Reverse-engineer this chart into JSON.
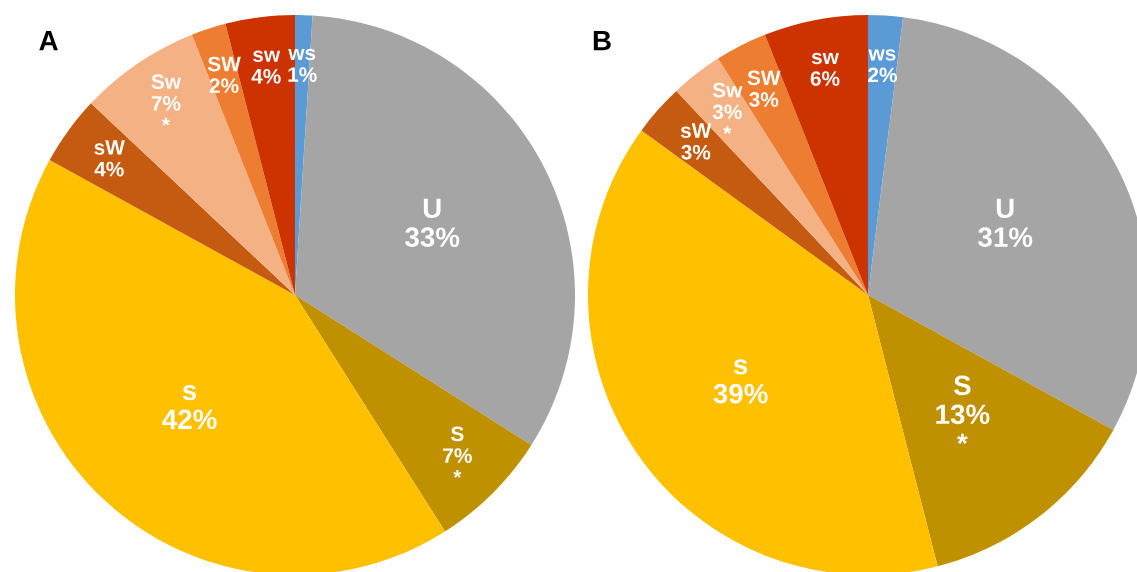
{
  "chart_data": [
    {
      "type": "pie",
      "title": "A",
      "categories": [
        "ws",
        "U",
        "S",
        "s",
        "sW",
        "Sw",
        "SW",
        "sw"
      ],
      "values": [
        1,
        33,
        7,
        42,
        4,
        7,
        2,
        4
      ],
      "value_labels": [
        "1%",
        "33%",
        "7%\n*",
        "42%",
        "4%",
        "7%\n*",
        "2%",
        "4%"
      ],
      "colors": [
        "#5b9bd5",
        "#a5a5a5",
        "#bf9000",
        "#ffc000",
        "#c55a11",
        "#f4b183",
        "#ed7d31",
        "#cc3300"
      ],
      "legend": false
    },
    {
      "type": "pie",
      "title": "B",
      "categories": [
        "ws",
        "U",
        "S",
        "s",
        "sW",
        "Sw",
        "SW",
        "sw"
      ],
      "values": [
        2,
        31,
        13,
        39,
        3,
        3,
        3,
        6
      ],
      "value_labels": [
        "2%",
        "31%",
        "13%\n*",
        "39%",
        "3%",
        "3%\n*",
        "3%",
        "6%"
      ],
      "colors": [
        "#5b9bd5",
        "#a5a5a5",
        "#bf9000",
        "#ffc000",
        "#c55a11",
        "#f4b183",
        "#ed7d31",
        "#cc3300"
      ],
      "legend": false
    }
  ]
}
